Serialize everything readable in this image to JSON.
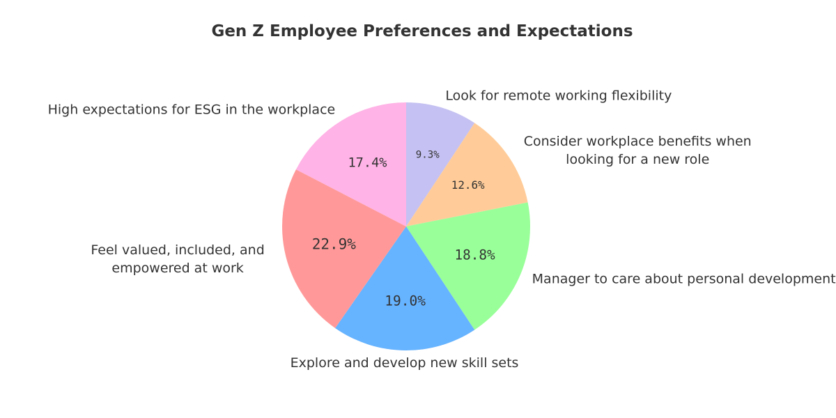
{
  "chart_data": {
    "type": "pie",
    "title": "Gen Z Employee Preferences and Expectations",
    "start_angle_deg": 90,
    "direction": "clockwise",
    "slices": [
      {
        "label": "Look for remote working flexibility",
        "value": 9.3,
        "display": "9.3%",
        "color": "#c5c1f2"
      },
      {
        "label": "Consider workplace benefits when looking for a new role",
        "label_lines": [
          "Consider workplace benefits when",
          "looking for a new role"
        ],
        "value": 12.6,
        "display": "12.6%",
        "color": "#ffcc99"
      },
      {
        "label": "Manager to care about personal development",
        "value": 18.8,
        "display": "18.8%",
        "color": "#99ff99"
      },
      {
        "label": "Explore and develop new skill sets",
        "value": 19.0,
        "display": "19.0%",
        "color": "#66b3ff"
      },
      {
        "label": "Feel valued, included, and empowered at work",
        "label_lines": [
          "Feel valued, included, and",
          "empowered at work"
        ],
        "value": 22.9,
        "display": "22.9%",
        "color": "#ff9999"
      },
      {
        "label": "High expectations for ESG in the workplace",
        "value": 17.4,
        "display": "17.4%",
        "color": "#ffb3e6"
      }
    ]
  }
}
